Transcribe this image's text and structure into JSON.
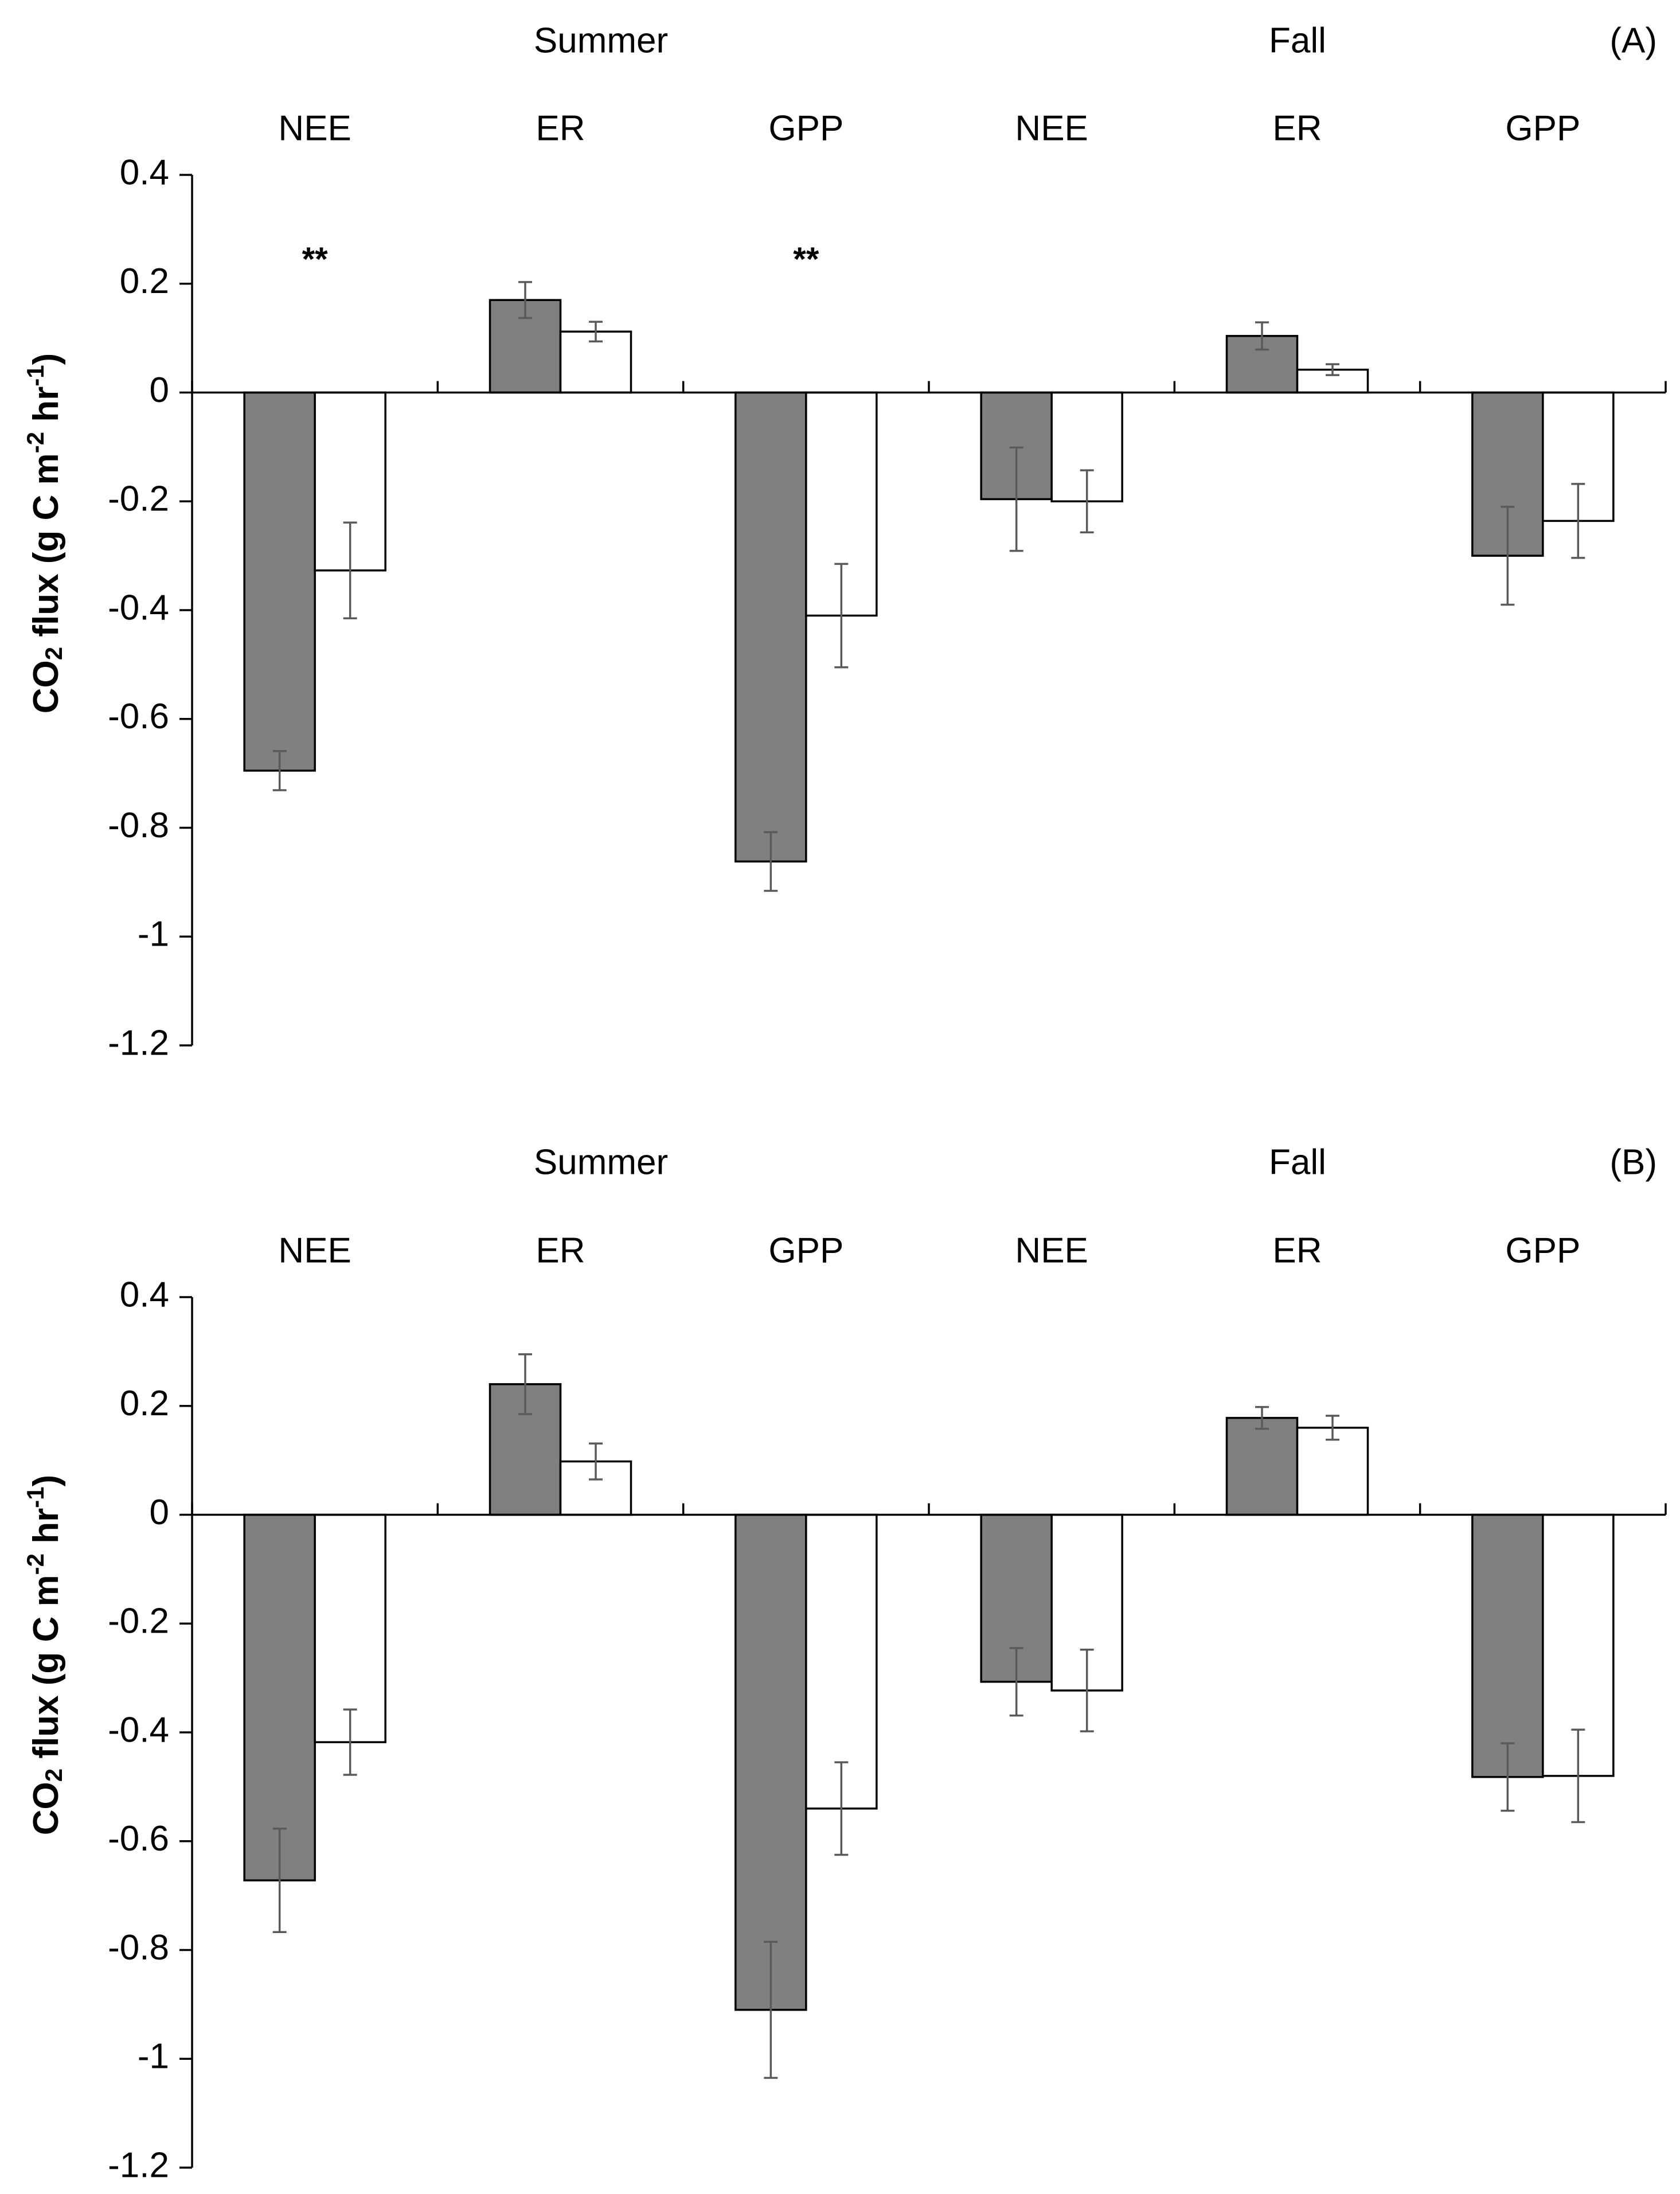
{
  "chart_data": [
    {
      "type": "bar",
      "panel_label": "(A)",
      "seasons": [
        "Summer",
        "Fall"
      ],
      "categories": [
        "NEE",
        "ER",
        "GPP",
        "NEE",
        "ER",
        "GPP"
      ],
      "ylabel": "CO2 flux (g C m-2 hr-1)",
      "ylabel_parts": {
        "pre": "CO",
        "sub": "2",
        "mid": " flux (g C m",
        "sup1": "-2",
        "mid2": " hr",
        "sup2": "-1",
        "post": ")"
      },
      "ylim": [
        -1.2,
        0.4
      ],
      "yticks": [
        0.4,
        0.2,
        0,
        -0.2,
        -0.4,
        -0.6,
        -0.8,
        -1,
        -1.2
      ],
      "ytick_labels": [
        "0.4",
        "0.2",
        "0",
        "-0.2",
        "-0.4",
        "-0.6",
        "-0.8",
        "-1",
        "-1.2"
      ],
      "series": [
        {
          "fill": "#808080",
          "values": [
            -0.695,
            0.17,
            -0.862,
            -0.196,
            0.104,
            -0.3
          ],
          "errors": [
            0.036,
            0.033,
            0.054,
            0.095,
            0.025,
            0.09
          ]
        },
        {
          "fill": "#ffffff",
          "values": [
            -0.327,
            0.112,
            -0.41,
            -0.2,
            0.042,
            -0.236
          ],
          "errors": [
            0.088,
            0.018,
            0.095,
            0.057,
            0.01,
            0.068
          ]
        }
      ],
      "annotations": [
        {
          "category_index": 0,
          "text": "**",
          "y": 0.24
        },
        {
          "category_index": 2,
          "text": "**",
          "y": 0.24
        }
      ]
    },
    {
      "type": "bar",
      "panel_label": "(B)",
      "seasons": [
        "Summer",
        "Fall"
      ],
      "categories": [
        "NEE",
        "ER",
        "GPP",
        "NEE",
        "ER",
        "GPP"
      ],
      "ylabel": "CO2 flux (g C m-2 hr-1)",
      "ylabel_parts": {
        "pre": "CO",
        "sub": "2",
        "mid": " flux (g C m",
        "sup1": "-2",
        "mid2": " hr",
        "sup2": "-1",
        "post": ")"
      },
      "ylim": [
        -1.2,
        0.4
      ],
      "yticks": [
        0.4,
        0.2,
        0,
        -0.2,
        -0.4,
        -0.6,
        -0.8,
        -1,
        -1.2
      ],
      "ytick_labels": [
        "0.4",
        "0.2",
        "0",
        "-0.2",
        "-0.4",
        "-0.6",
        "-0.8",
        "-1",
        "-1.2"
      ],
      "series": [
        {
          "fill": "#808080",
          "values": [
            -0.672,
            0.24,
            -0.91,
            -0.307,
            0.178,
            -0.482
          ],
          "errors": [
            0.095,
            0.055,
            0.125,
            0.062,
            0.02,
            0.062
          ]
        },
        {
          "fill": "#ffffff",
          "values": [
            -0.418,
            0.098,
            -0.54,
            -0.323,
            0.16,
            -0.48
          ],
          "errors": [
            0.06,
            0.033,
            0.085,
            0.075,
            0.022,
            0.085
          ]
        }
      ],
      "annotations": []
    }
  ]
}
